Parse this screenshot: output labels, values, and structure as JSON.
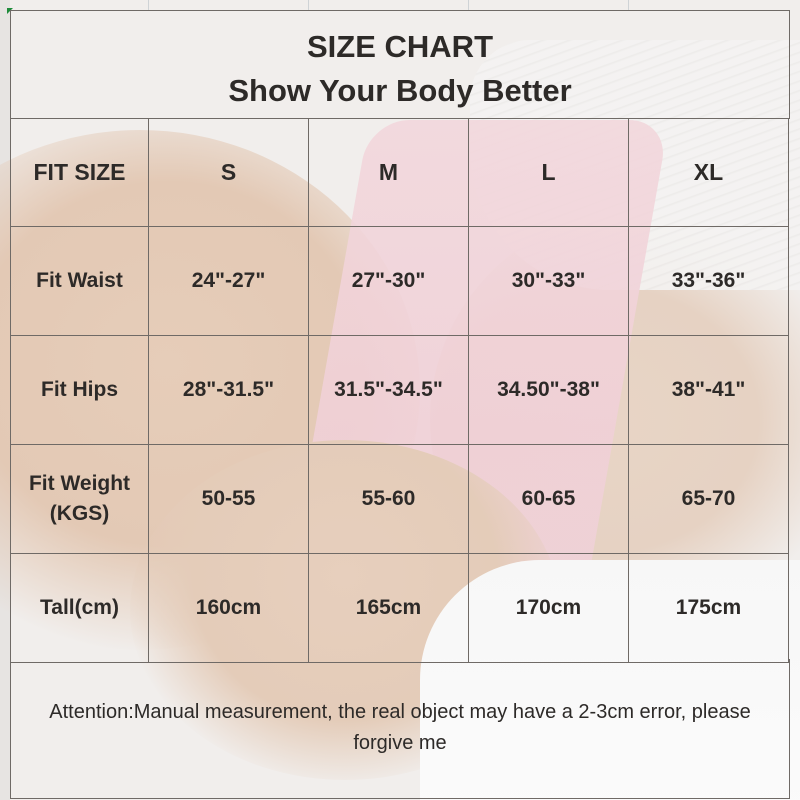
{
  "title": "SIZE CHART",
  "subtitle": "Show Your Body Better",
  "table": {
    "header": [
      "FIT SIZE",
      "S",
      "M",
      "L",
      "XL"
    ],
    "rows": [
      [
        "Fit Waist",
        "24\"-27\"",
        "27\"-30\"",
        "30\"-33\"",
        "33\"-36\""
      ],
      [
        "Fit Hips",
        "28\"-31.5\"",
        "31.5\"-34.5\"",
        "34.50\"-38\"",
        "38\"-41\""
      ],
      [
        "Fit Weight (KGS)",
        "50-55",
        "55-60",
        "60-65",
        "65-70"
      ],
      [
        "Tall(cm)",
        "160cm",
        "165cm",
        "170cm",
        "175cm"
      ]
    ]
  },
  "note": "Attention:Manual measurement, the real object may have a 2-3cm error, please forgive me",
  "colors": {
    "text": "#2d2a28",
    "border": "#6f6a66",
    "accent_marker": "#1f8b3a"
  }
}
